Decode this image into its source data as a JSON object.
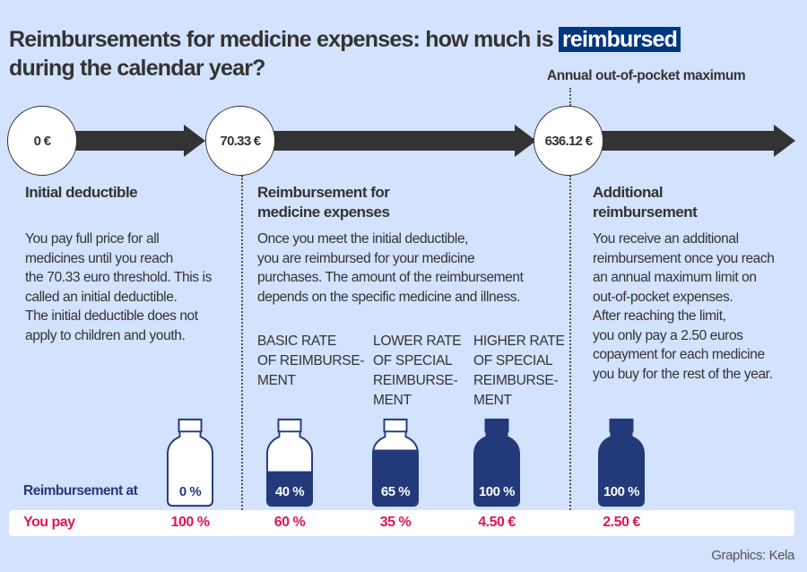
{
  "title": {
    "line1_pre": "Reimbursements for medicine expenses: how much is ",
    "line1_highlight": "reimbursed",
    "line2": "during the calendar year?"
  },
  "timeline": {
    "points": [
      "0 €",
      "70.33 €",
      "636.12 €"
    ],
    "max_label": "Annual out-of-pocket maximum"
  },
  "sections": [
    {
      "heading": "Initial deductible",
      "lines": [
        "You pay full price for all",
        "medicines until you reach",
        "the 70.33 euro threshold. This is",
        "called an initial deductible.",
        "The initial deductible does not",
        "apply to children and youth."
      ]
    },
    {
      "heading_lines": [
        "Reimbursement for",
        "medicine expenses"
      ],
      "lines": [
        "Once you meet the initial deductible,",
        "you are reimbursed for your medicine",
        "purchases. The amount of the reimbursement",
        "depends on the specific medicine and illness."
      ]
    },
    {
      "heading_lines": [
        "Additional",
        "reimbursement"
      ],
      "lines": [
        "You receive an additional",
        "reimbursement once you reach",
        "an annual maximum limit on",
        "out-of-pocket expenses.",
        "After reaching the limit,",
        "you only pay a 2.50 euros",
        "copayment for each medicine",
        "you buy for the rest of the year."
      ]
    }
  ],
  "rates": [
    [
      "BASIC RATE",
      "OF REIMBURSE-",
      "MENT"
    ],
    [
      "LOWER RATE",
      "OF SPECIAL",
      "REIMBURSE-",
      "MENT"
    ],
    [
      "HIGHER RATE",
      "OF SPECIAL",
      "REIMBURSE-",
      "MENT"
    ]
  ],
  "reimbursement_label": "Reimbursement at",
  "you_pay_label": "You pay",
  "bottles": [
    {
      "reimbursement": "0 %",
      "fill": 0,
      "you_pay": "100 %"
    },
    {
      "reimbursement": "40 %",
      "fill": 0.4,
      "you_pay": "60 %"
    },
    {
      "reimbursement": "65 %",
      "fill": 0.65,
      "you_pay": "35 %"
    },
    {
      "reimbursement": "100 %",
      "fill": 1,
      "you_pay": "4.50 €"
    },
    {
      "reimbursement": "100 %",
      "fill": 1,
      "you_pay": "2.50 €"
    }
  ],
  "credit": "Graphics: Kela",
  "colors": {
    "background": "#d3e2fd",
    "navy": "#233a7a",
    "highlight": "#003580",
    "pay_red": "#e0174f"
  }
}
